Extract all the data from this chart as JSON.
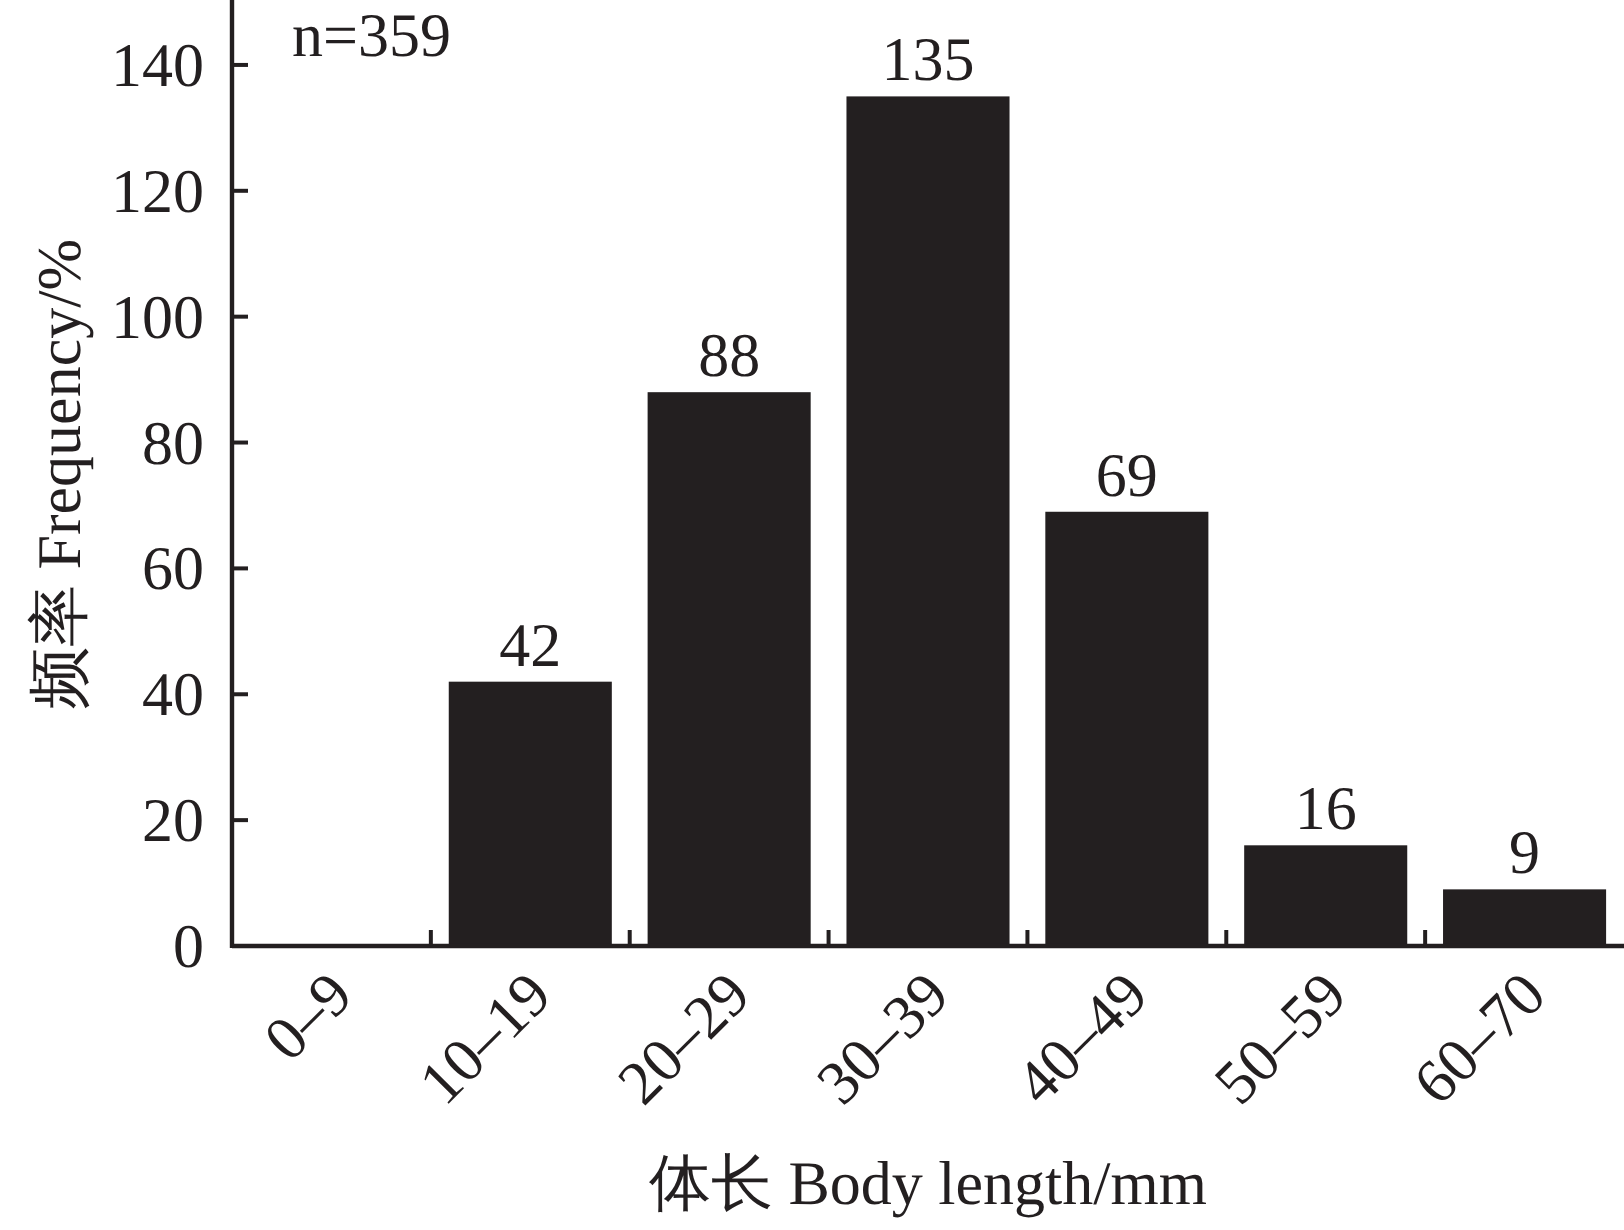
{
  "chart_data": {
    "type": "bar",
    "xlabel": "体长 Body length/mm",
    "ylabel": "频率 Frequency/%",
    "categories": [
      "0–9",
      "10–19",
      "20–29",
      "30–39",
      "40–49",
      "50–59",
      "60–70"
    ],
    "values": [
      0,
      42,
      88,
      135,
      69,
      16,
      9
    ],
    "color": "#231f20",
    "value_labels": [
      null,
      "42",
      "88",
      "135",
      "69",
      "16",
      "9"
    ],
    "ylim": [
      0,
      150
    ],
    "yticks": [
      0,
      20,
      40,
      60,
      80,
      100,
      120,
      140
    ],
    "annotations": [
      "n=359"
    ]
  }
}
